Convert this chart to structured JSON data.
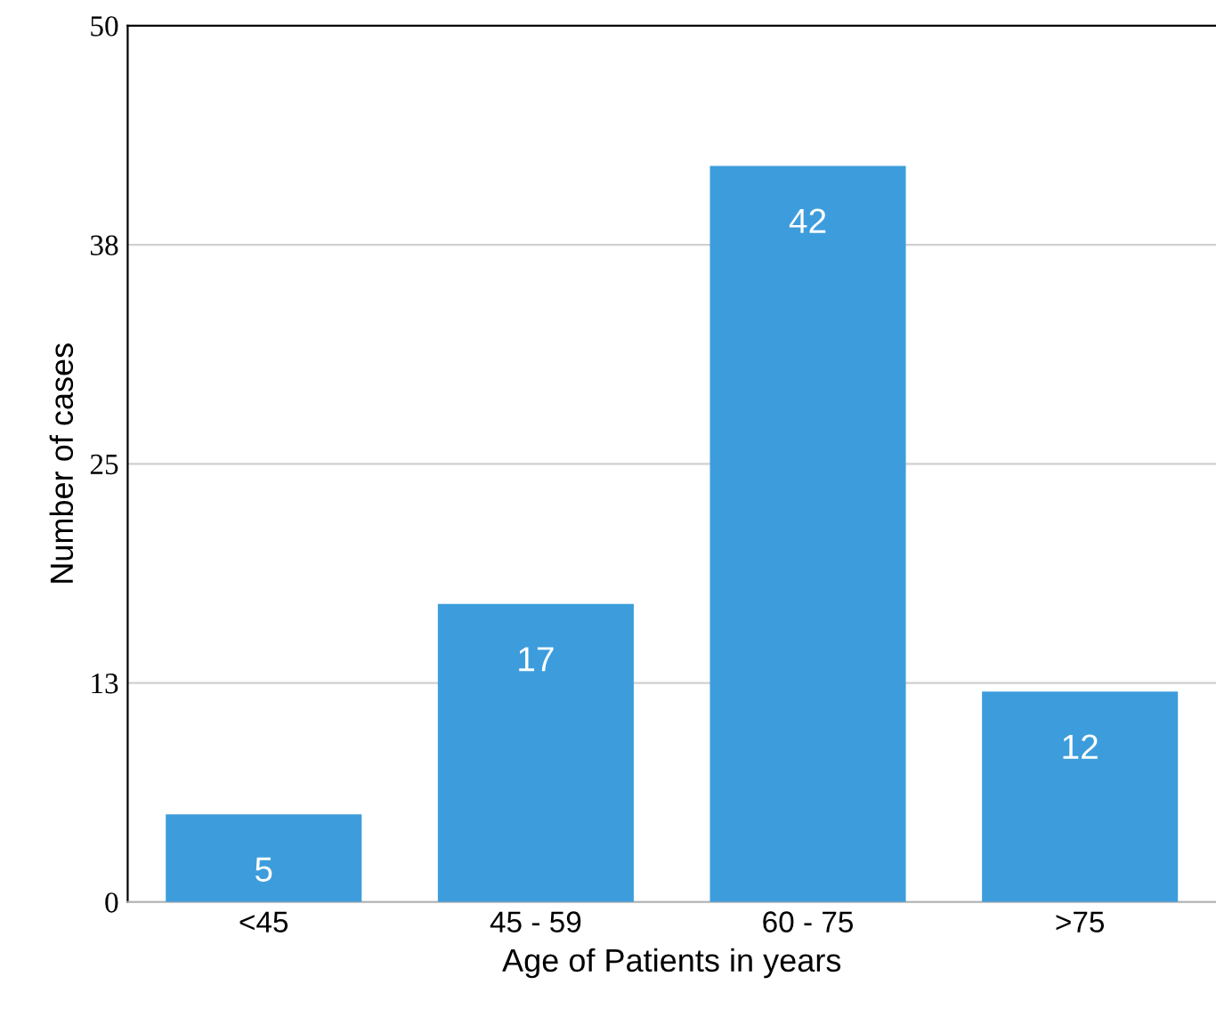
{
  "chart_data": {
    "type": "bar",
    "xlabel": "Age of Patients in years",
    "ylabel": "Number of cases",
    "categories": [
      "<45",
      "45 - 59",
      "60 - 75",
      ">75"
    ],
    "values": [
      5,
      17,
      42,
      12
    ],
    "color": "#3d9ddc",
    "ylim": [
      0,
      50
    ],
    "yticks": [
      0,
      {
        "value": 12.5,
        "label": "13"
      },
      25,
      {
        "value": 37.5,
        "label": "38"
      },
      50
    ],
    "grid": "y",
    "data_labels": true
  }
}
